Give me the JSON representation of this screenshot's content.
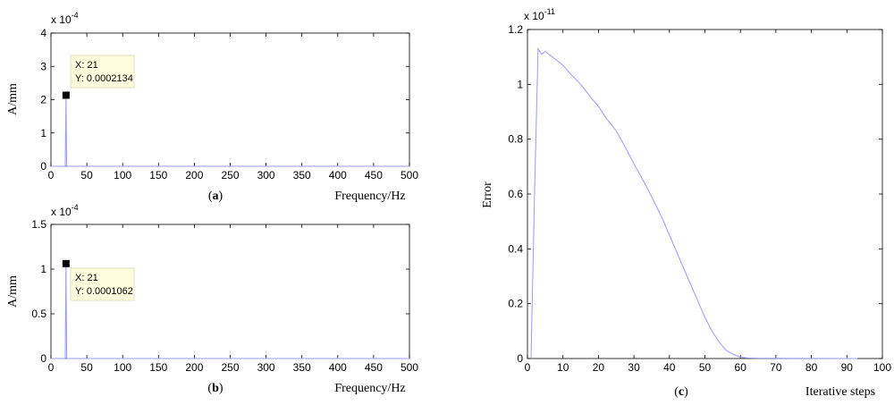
{
  "chart_data": [
    {
      "type": "line",
      "panel_label": "a",
      "xlabel": "Frequency/Hz",
      "ylabel": "A/mm",
      "y_multiplier": "x 10",
      "y_multiplier_exp": "-4",
      "xlim": [
        0,
        500
      ],
      "ylim": [
        0,
        4
      ],
      "xticks": [
        0,
        50,
        100,
        150,
        200,
        250,
        300,
        350,
        400,
        450,
        500
      ],
      "yticks": [
        0,
        1,
        2,
        3,
        4
      ],
      "series": [
        {
          "x": [
            0,
            20,
            21,
            22,
            500
          ],
          "y": [
            0,
            0,
            2.134,
            0,
            0
          ]
        }
      ],
      "datatip": {
        "x": 21,
        "y": 2.134,
        "x_label": "X: 21",
        "y_label": "Y: 0.0002134"
      }
    },
    {
      "type": "line",
      "panel_label": "b",
      "xlabel": "Frequency/Hz",
      "ylabel": "A/mm",
      "y_multiplier": "x 10",
      "y_multiplier_exp": "-4",
      "xlim": [
        0,
        500
      ],
      "ylim": [
        0,
        1.5
      ],
      "xticks": [
        0,
        50,
        100,
        150,
        200,
        250,
        300,
        350,
        400,
        450,
        500
      ],
      "yticks": [
        0,
        0.5,
        1,
        1.5
      ],
      "series": [
        {
          "x": [
            0,
            20,
            21,
            22,
            500
          ],
          "y": [
            0,
            0,
            1.062,
            0,
            0
          ]
        }
      ],
      "datatip": {
        "x": 21,
        "y": 1.062,
        "x_label": "X: 21",
        "y_label": "Y: 0.0001062"
      }
    },
    {
      "type": "line",
      "panel_label": "c",
      "xlabel": "Iterative steps",
      "ylabel": "Error",
      "y_multiplier": "x 10",
      "y_multiplier_exp": "-11",
      "xlim": [
        0,
        100
      ],
      "ylim": [
        0,
        1.2
      ],
      "xticks": [
        0,
        10,
        20,
        30,
        40,
        50,
        60,
        70,
        80,
        90,
        100
      ],
      "yticks": [
        0,
        0.2,
        0.4,
        0.6,
        0.8,
        1,
        1.2
      ],
      "series": [
        {
          "x": [
            1,
            2,
            3,
            4,
            5,
            6,
            8,
            10,
            12,
            15,
            18,
            20,
            22,
            25,
            28,
            30,
            33,
            35,
            38,
            40,
            42,
            45,
            48,
            50,
            52,
            54,
            56,
            58,
            60,
            62,
            65,
            70,
            80,
            90,
            93
          ],
          "y": [
            0,
            0.6,
            1.13,
            1.11,
            1.12,
            1.11,
            1.09,
            1.07,
            1.04,
            1.0,
            0.95,
            0.92,
            0.88,
            0.83,
            0.76,
            0.71,
            0.64,
            0.59,
            0.51,
            0.45,
            0.39,
            0.3,
            0.21,
            0.15,
            0.1,
            0.06,
            0.03,
            0.015,
            0.005,
            0.002,
            0.001,
            0.0005,
            0.0002,
            0.0001,
            0.0001
          ]
        }
      ]
    }
  ]
}
